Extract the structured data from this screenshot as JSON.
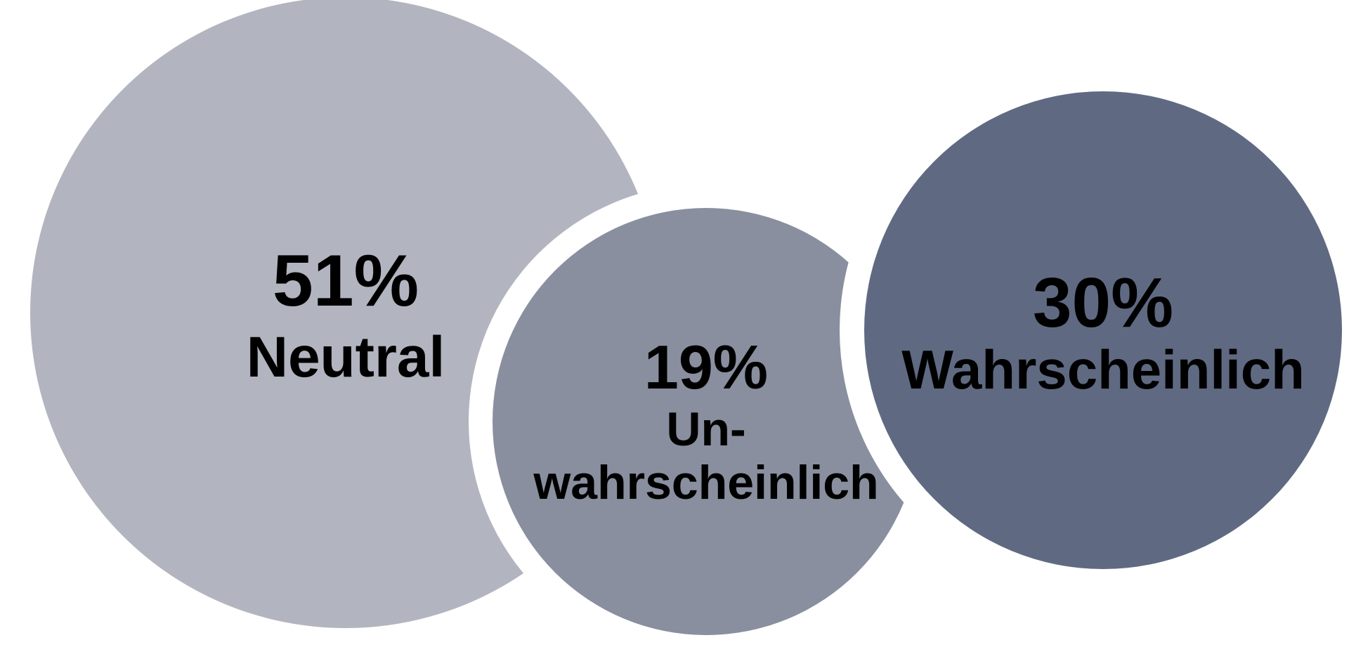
{
  "chart_data": {
    "type": "bubble",
    "title": "",
    "series": [
      {
        "name": "Neutral",
        "value": 51,
        "value_label": "51%",
        "label_lines": [
          "Neutral"
        ],
        "color": "#b2b5bf"
      },
      {
        "name": "Unwahrscheinlich",
        "value": 19,
        "value_label": "19%",
        "label_lines": [
          "Un-",
          "wahrscheinlich"
        ],
        "color": "#898f9f"
      },
      {
        "name": "Wahrscheinlich",
        "value": 30,
        "value_label": "30%",
        "label_lines": [
          "Wahrscheinlich"
        ],
        "color": "#5f6a82"
      }
    ],
    "background": "#ffffff"
  }
}
